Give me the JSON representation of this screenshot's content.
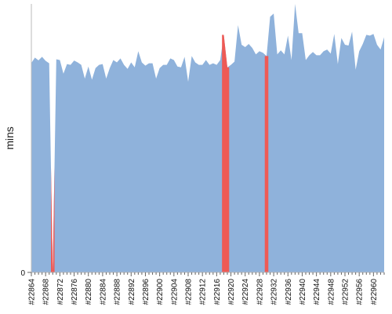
{
  "chart_data": {
    "type": "area",
    "ylabel": "mins",
    "yticks": [
      {
        "value": 0,
        "label": "0"
      }
    ],
    "ylim": [
      0,
      100
    ],
    "grid": false,
    "colors": {
      "normal": "#8fb2db",
      "highlight": "#ee5a55",
      "axis": "#bbbbbb",
      "tick": "#666666"
    },
    "x_start": 22864,
    "x_end": 22961,
    "x_label_prefix": "#",
    "labeled_ticks": [
      "#22864",
      "#22868",
      "#22872",
      "#22876",
      "#22880",
      "#22884",
      "#22888",
      "#22892",
      "#22896",
      "#22900",
      "#22904",
      "#22908",
      "#22912",
      "#22916",
      "#22920",
      "#22924",
      "#22928",
      "#22932",
      "#22936",
      "#22940",
      "#22944",
      "#22948",
      "#22952",
      "#22956",
      "#22960"
    ],
    "values": [
      78.0,
      80.0,
      79.0,
      80.3,
      78.8,
      77.9,
      0,
      79.4,
      79.1,
      74.0,
      77.6,
      77.3,
      78.9,
      78.2,
      77.3,
      72.2,
      76.7,
      71.8,
      76.1,
      77.3,
      77.6,
      72.2,
      76.1,
      79.1,
      78.2,
      79.7,
      77.3,
      75.8,
      78.2,
      76.4,
      82.4,
      78.2,
      77.0,
      77.9,
      77.9,
      72.2,
      76.1,
      77.3,
      77.3,
      79.7,
      79.1,
      76.7,
      76.4,
      80.3,
      71.0,
      80.6,
      78.2,
      77.3,
      77.3,
      79.1,
      77.3,
      77.9,
      77.3,
      79.1,
      88.5,
      76.4,
      77.3,
      78.5,
      92.1,
      84.8,
      83.9,
      85.1,
      83.6,
      81.2,
      82.4,
      81.8,
      80.6,
      95.2,
      96.4,
      81.2,
      82.7,
      81.2,
      88.2,
      79.1,
      100,
      89.1,
      89.1,
      79.1,
      80.9,
      82.1,
      80.9,
      80.9,
      82.4,
      83.0,
      81.5,
      88.8,
      77.6,
      87.3,
      84.8,
      84.5,
      89.7,
      75.5,
      82.4,
      85.1,
      88.5,
      88.2,
      88.8,
      84.8,
      83.0,
      87.6
    ],
    "highlights": [
      [
        6,
        6
      ],
      [
        54,
        55
      ],
      [
        66,
        66
      ]
    ]
  }
}
